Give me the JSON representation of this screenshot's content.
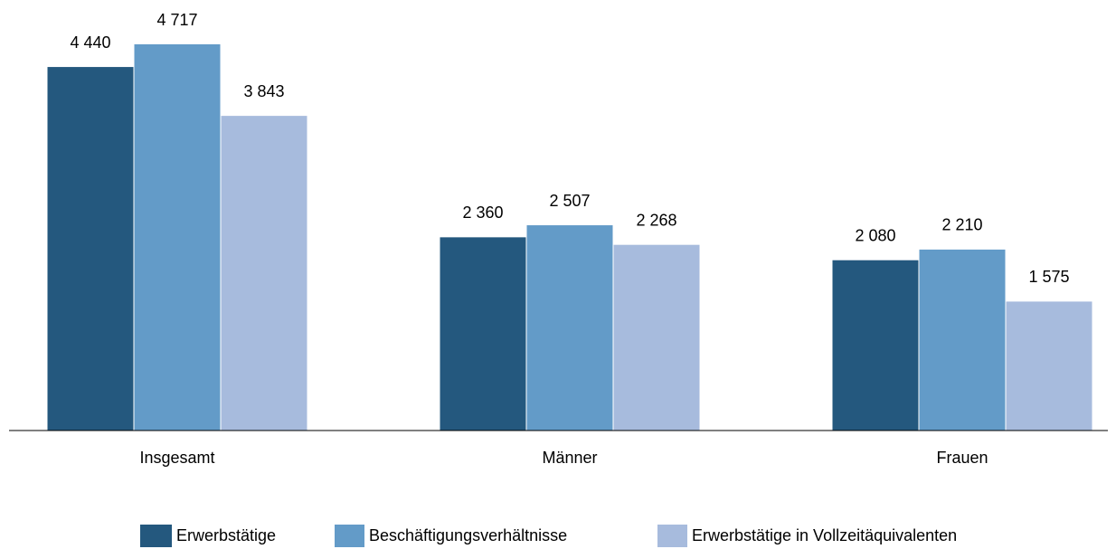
{
  "chart_data": {
    "type": "bar",
    "categories": [
      "Insgesamt",
      "Männer",
      "Frauen"
    ],
    "series": [
      {
        "name": "Erwerbstätige",
        "color": "#24587e",
        "values": [
          4440,
          2360,
          2080
        ],
        "value_labels": [
          "4 440",
          "2 360",
          "2 080"
        ]
      },
      {
        "name": "Beschäftigungsverhältnisse",
        "color": "#639bc8",
        "values": [
          4717,
          2507,
          2210
        ],
        "value_labels": [
          "4 717",
          "2 507",
          "2 210"
        ]
      },
      {
        "name": "Erwerbstätige in Vollzeitäquivalenten",
        "color": "#a7bbdd",
        "values": [
          3843,
          2268,
          1575
        ],
        "value_labels": [
          "3 843",
          "2 268",
          "1 575"
        ]
      }
    ],
    "legend": "bottom"
  }
}
